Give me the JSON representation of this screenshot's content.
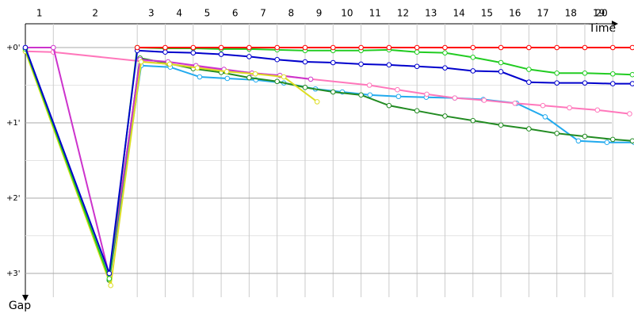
{
  "chart_data": {
    "type": "line",
    "x_label": "Time",
    "y_label": "Gap",
    "xlim": [
      0,
      21.8
    ],
    "ylim": [
      -0.3,
      3.3
    ],
    "xticks": [
      {
        "value": 0.5,
        "label": "1"
      },
      {
        "value": 2.5,
        "label": "2"
      },
      {
        "value": 4.5,
        "label": "3"
      },
      {
        "value": 5.5,
        "label": "4"
      },
      {
        "value": 6.5,
        "label": "5"
      },
      {
        "value": 7.5,
        "label": "6"
      },
      {
        "value": 8.5,
        "label": "7"
      },
      {
        "value": 9.5,
        "label": "8"
      },
      {
        "value": 10.5,
        "label": "9"
      },
      {
        "value": 11.5,
        "label": "10"
      },
      {
        "value": 12.5,
        "label": "11"
      },
      {
        "value": 13.5,
        "label": "12"
      },
      {
        "value": 14.5,
        "label": "13"
      },
      {
        "value": 15.5,
        "label": "14"
      },
      {
        "value": 16.5,
        "label": "15"
      },
      {
        "value": 17.5,
        "label": "16"
      },
      {
        "value": 18.5,
        "label": "17"
      },
      {
        "value": 19.5,
        "label": "18"
      },
      {
        "value": 20.5,
        "label": "19"
      },
      {
        "value": 20.6,
        "label": "20"
      }
    ],
    "lap_lines": [
      1,
      4,
      5,
      6,
      7,
      8,
      9,
      10,
      11,
      12,
      13,
      14,
      15,
      16,
      17,
      18,
      19,
      20,
      21
    ],
    "yticks": [
      {
        "value": 0,
        "label": "+0'"
      },
      {
        "value": 1,
        "label": "+1'"
      },
      {
        "value": 2,
        "label": "+2'"
      },
      {
        "value": 3,
        "label": "+3'"
      }
    ],
    "minor_yticks": [
      0.5,
      1.5,
      2.5
    ],
    "grid": true,
    "series": [
      {
        "color": "#22aaee",
        "x": [
          0,
          3,
          4.14,
          5.18,
          6.23,
          7.22,
          8.24,
          9.24,
          10.37,
          11.33,
          12.32,
          13.34,
          14.33,
          15.35,
          16.37,
          17.56,
          18.58,
          19.77,
          20.79,
          21.76
        ],
        "values": [
          0,
          3.09,
          0.24,
          0.26,
          0.39,
          0.41,
          0.43,
          0.47,
          0.55,
          0.59,
          0.63,
          0.65,
          0.66,
          0.67,
          0.69,
          0.74,
          0.92,
          1.24,
          1.26,
          1.26
        ]
      },
      {
        "color": "#228b22",
        "x": [
          0,
          3,
          4.1,
          5.1,
          6,
          7,
          8,
          9,
          10,
          11,
          12,
          13,
          14,
          15,
          16,
          17,
          18,
          19,
          20,
          21,
          21.7
        ],
        "values": [
          0.02,
          3.09,
          0.14,
          0.21,
          0.28,
          0.33,
          0.4,
          0.45,
          0.53,
          0.59,
          0.63,
          0.77,
          0.84,
          0.91,
          0.97,
          1.03,
          1.08,
          1.14,
          1.18,
          1.22,
          1.24
        ]
      },
      {
        "color": "#ff77bb",
        "x": [
          0,
          1,
          12.3,
          13.3,
          14.35,
          15.35,
          16.4,
          17.5,
          18.5,
          19.45,
          20.45,
          21.6
        ],
        "values": [
          0.05,
          0.06,
          0.5,
          0.56,
          0.62,
          0.67,
          0.7,
          0.74,
          0.77,
          0.8,
          0.83,
          0.88
        ]
      },
      {
        "color": "#cc33cc",
        "x": [
          0,
          1,
          3,
          4.1,
          5.1,
          6.1,
          7.1,
          8.1,
          9.1,
          10.2
        ],
        "values": [
          0,
          0,
          3.03,
          0.16,
          0.19,
          0.24,
          0.29,
          0.34,
          0.37,
          0.42
        ]
      },
      {
        "color": "#dddd22",
        "x": [
          0,
          3.05,
          4.14,
          5.16,
          6.15,
          7.2,
          8.22,
          9.24,
          10.43
        ],
        "values": [
          0.05,
          3.16,
          0.19,
          0.22,
          0.27,
          0.32,
          0.35,
          0.39,
          0.72
        ]
      },
      {
        "color": "#22cc22",
        "x": [
          0,
          3,
          4,
          5,
          6,
          7,
          8,
          9,
          10,
          11,
          12,
          13,
          14,
          15,
          16,
          17,
          18,
          19,
          20,
          21,
          21.7
        ],
        "values": [
          0.02,
          3.07,
          0,
          0.01,
          0.01,
          0.02,
          0.02,
          0.03,
          0.04,
          0.04,
          0.04,
          0.03,
          0.06,
          0.07,
          0.13,
          0.2,
          0.29,
          0.34,
          0.34,
          0.35,
          0.36
        ]
      },
      {
        "color": "#0000cc",
        "x": [
          0,
          3,
          4,
          5,
          6,
          7,
          8,
          9,
          10,
          11,
          12,
          13,
          14,
          15,
          16,
          17,
          18,
          19,
          20,
          21,
          21.7
        ],
        "values": [
          0,
          3.0,
          0.04,
          0.06,
          0.07,
          0.09,
          0.12,
          0.16,
          0.19,
          0.2,
          0.22,
          0.23,
          0.25,
          0.27,
          0.31,
          0.32,
          0.46,
          0.47,
          0.47,
          0.48,
          0.48
        ]
      },
      {
        "color": "#ff0000",
        "x": [
          4,
          5,
          6,
          7,
          8,
          9,
          10,
          11,
          12,
          13,
          14,
          15,
          16,
          17,
          18,
          19,
          20,
          21,
          21.7
        ],
        "values": [
          0,
          0,
          0,
          0,
          0,
          0,
          0,
          0,
          0,
          0,
          0,
          0,
          0,
          0,
          0,
          0,
          0,
          0,
          0
        ]
      }
    ]
  }
}
